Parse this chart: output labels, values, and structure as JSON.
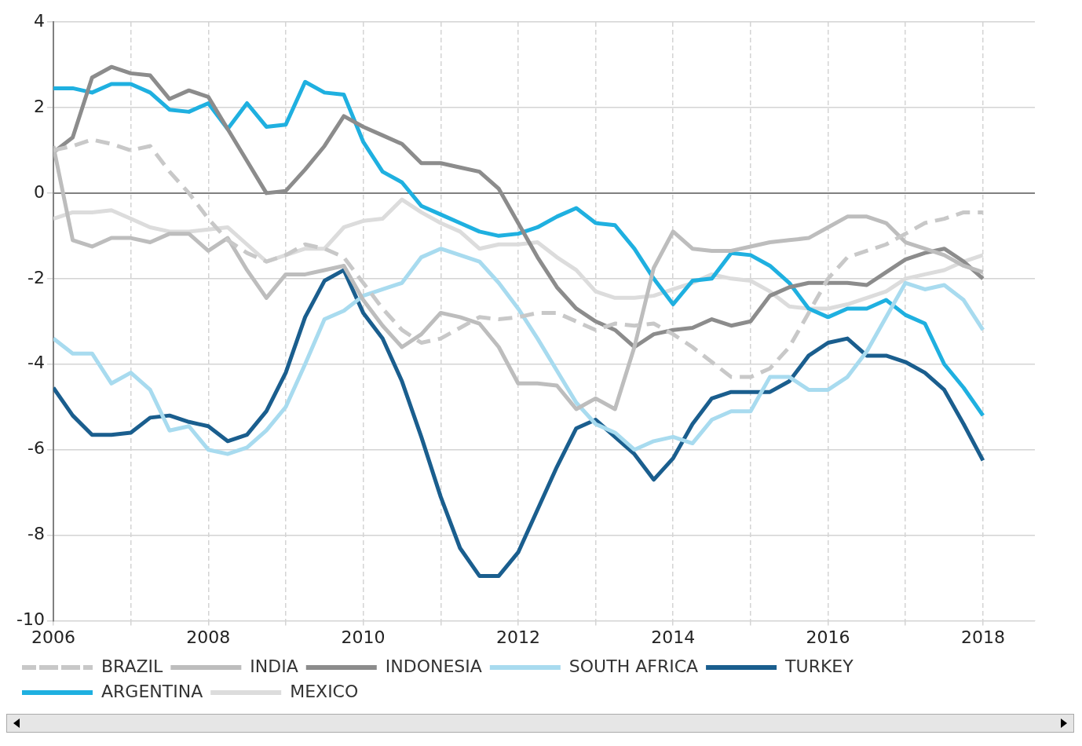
{
  "chart_data": {
    "type": "line",
    "x": [
      2006,
      2006.25,
      2006.5,
      2006.75,
      2007,
      2007.25,
      2007.5,
      2007.75,
      2008,
      2008.25,
      2008.5,
      2008.75,
      2009,
      2009.25,
      2009.5,
      2009.75,
      2010,
      2010.25,
      2010.5,
      2010.75,
      2011,
      2011.25,
      2011.5,
      2011.75,
      2012,
      2012.25,
      2012.5,
      2012.75,
      2013,
      2013.25,
      2013.5,
      2013.75,
      2014,
      2014.25,
      2014.5,
      2014.75,
      2015,
      2015.25,
      2015.5,
      2015.75,
      2016,
      2016.25,
      2016.5,
      2016.75,
      2017,
      2017.25,
      2017.5,
      2017.75,
      2018
    ],
    "series": [
      {
        "name": "BRAZIL",
        "color": "#c8c8c8",
        "line_style": "dashed",
        "values": [
          1.0,
          1.1,
          1.25,
          1.15,
          1.0,
          1.1,
          0.5,
          0.0,
          -0.6,
          -1.1,
          -1.4,
          -1.6,
          -1.45,
          -1.2,
          -1.3,
          -1.5,
          -2.1,
          -2.7,
          -3.2,
          -3.5,
          -3.4,
          -3.15,
          -2.9,
          -2.95,
          -2.9,
          -2.8,
          -2.8,
          -3.0,
          -3.2,
          -3.05,
          -3.1,
          -3.05,
          -3.3,
          -3.6,
          -3.95,
          -4.3,
          -4.3,
          -4.1,
          -3.6,
          -2.8,
          -2.0,
          -1.5,
          -1.35,
          -1.2,
          -0.95,
          -0.7,
          -0.6,
          -0.45,
          -0.45
        ]
      },
      {
        "name": "INDIA",
        "color": "#bdbdbd",
        "values": [
          1.1,
          -1.1,
          -1.25,
          -1.05,
          -1.05,
          -1.15,
          -0.95,
          -0.95,
          -1.35,
          -1.05,
          -1.8,
          -2.45,
          -1.9,
          -1.9,
          -1.8,
          -1.7,
          -2.5,
          -3.1,
          -3.6,
          -3.3,
          -2.8,
          -2.9,
          -3.05,
          -3.6,
          -4.45,
          -4.45,
          -4.5,
          -5.05,
          -4.8,
          -5.05,
          -3.6,
          -1.75,
          -0.9,
          -1.3,
          -1.35,
          -1.35,
          -1.25,
          -1.15,
          -1.1,
          -1.05,
          -0.8,
          -0.55,
          -0.55,
          -0.7,
          -1.15,
          -1.3,
          -1.45,
          -1.7,
          -1.85
        ]
      },
      {
        "name": "INDONESIA",
        "color": "#8c8c8c",
        "values": [
          0.95,
          1.3,
          2.7,
          2.95,
          2.8,
          2.75,
          2.2,
          2.4,
          2.25,
          1.5,
          0.75,
          0.0,
          0.05,
          0.55,
          1.1,
          1.8,
          1.55,
          1.35,
          1.15,
          0.7,
          0.7,
          0.6,
          0.5,
          0.1,
          -0.7,
          -1.5,
          -2.2,
          -2.7,
          -3.0,
          -3.2,
          -3.6,
          -3.3,
          -3.2,
          -3.15,
          -2.95,
          -3.1,
          -3.0,
          -2.4,
          -2.2,
          -2.1,
          -2.1,
          -2.1,
          -2.15,
          -1.85,
          -1.55,
          -1.4,
          -1.3,
          -1.6,
          -2.0
        ]
      },
      {
        "name": "SOUTH AFRICA",
        "color": "#a8dbef",
        "values": [
          -3.4,
          -3.75,
          -3.75,
          -4.45,
          -4.2,
          -4.6,
          -5.55,
          -5.45,
          -6.0,
          -6.1,
          -5.95,
          -5.55,
          -5.0,
          -4.0,
          -2.95,
          -2.75,
          -2.4,
          -2.25,
          -2.1,
          -1.5,
          -1.3,
          -1.45,
          -1.6,
          -2.1,
          -2.7,
          -3.4,
          -4.15,
          -4.9,
          -5.4,
          -5.6,
          -6.0,
          -5.8,
          -5.7,
          -5.85,
          -5.3,
          -5.1,
          -5.1,
          -4.3,
          -4.3,
          -4.6,
          -4.6,
          -4.3,
          -3.7,
          -2.9,
          -2.1,
          -2.25,
          -2.15,
          -2.5,
          -3.2
        ]
      },
      {
        "name": "TURKEY",
        "color": "#1a5e8e",
        "values": [
          -4.55,
          -5.2,
          -5.65,
          -5.65,
          -5.6,
          -5.25,
          -5.2,
          -5.35,
          -5.45,
          -5.8,
          -5.65,
          -5.1,
          -4.2,
          -2.9,
          -2.05,
          -1.8,
          -2.8,
          -3.4,
          -4.4,
          -5.7,
          -7.1,
          -8.3,
          -8.95,
          -8.95,
          -8.4,
          -7.4,
          -6.4,
          -5.5,
          -5.3,
          -5.7,
          -6.1,
          -6.7,
          -6.2,
          -5.4,
          -4.8,
          -4.65,
          -4.65,
          -4.65,
          -4.4,
          -3.8,
          -3.5,
          -3.4,
          -3.8,
          -3.8,
          -3.95,
          -4.2,
          -4.6,
          -5.4,
          -6.25
        ]
      },
      {
        "name": "ARGENTINA",
        "color": "#1fb0e0",
        "values": [
          2.45,
          2.45,
          2.35,
          2.55,
          2.55,
          2.35,
          1.95,
          1.9,
          2.1,
          1.5,
          2.1,
          1.55,
          1.6,
          2.6,
          2.35,
          2.3,
          1.2,
          0.5,
          0.25,
          -0.3,
          -0.5,
          -0.7,
          -0.9,
          -1.0,
          -0.95,
          -0.8,
          -0.55,
          -0.35,
          -0.7,
          -0.75,
          -1.3,
          -2.0,
          -2.6,
          -2.05,
          -2.0,
          -1.4,
          -1.45,
          -1.7,
          -2.1,
          -2.7,
          -2.9,
          -2.7,
          -2.7,
          -2.5,
          -2.85,
          -3.05,
          -4.0,
          -4.55,
          -5.2
        ]
      },
      {
        "name": "MEXICO",
        "color": "#dcdcdc",
        "values": [
          -0.6,
          -0.45,
          -0.45,
          -0.4,
          -0.6,
          -0.8,
          -0.9,
          -0.9,
          -0.85,
          -0.8,
          -1.2,
          -1.6,
          -1.45,
          -1.3,
          -1.3,
          -0.8,
          -0.65,
          -0.6,
          -0.15,
          -0.45,
          -0.7,
          -0.9,
          -1.3,
          -1.2,
          -1.2,
          -1.15,
          -1.5,
          -1.8,
          -2.3,
          -2.45,
          -2.45,
          -2.4,
          -2.25,
          -2.1,
          -1.9,
          -2.0,
          -2.05,
          -2.3,
          -2.65,
          -2.7,
          -2.7,
          -2.6,
          -2.45,
          -2.3,
          -2.0,
          -1.9,
          -1.8,
          -1.6,
          -1.45
        ]
      }
    ],
    "xlim": [
      2006,
      2018.67
    ],
    "xticks": [
      2006,
      {
        "value": 2007,
        "label": null
      },
      2008,
      {
        "value": 2009,
        "label": null
      },
      2010,
      {
        "value": 2011,
        "label": null
      },
      2012,
      {
        "value": 2013,
        "label": null
      },
      2014,
      {
        "value": 2015,
        "label": null
      },
      2016,
      {
        "value": 2017,
        "label": null
      },
      2018
    ],
    "ylim": [
      -10,
      4
    ],
    "yticks": [
      -10,
      -8,
      -6,
      -4,
      -2,
      0,
      2,
      4
    ],
    "ref_lines": [
      {
        "axis": "y",
        "value": 0,
        "color": "#808080"
      }
    ],
    "grid": true,
    "legend": "bottom",
    "marker": "none"
  }
}
